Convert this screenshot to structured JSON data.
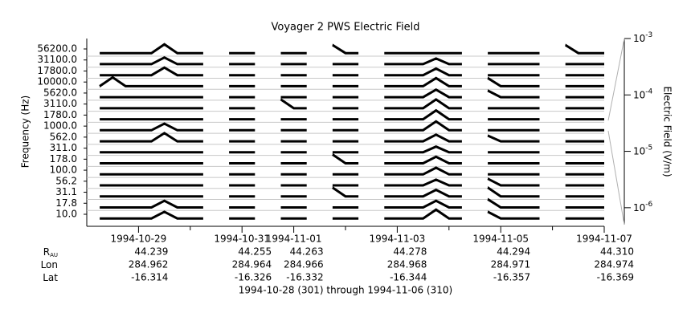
{
  "chart_data": {
    "type": "strip",
    "title": "Voyager 2 PWS Electric Field",
    "subtitle": "1994-10-28 (301) through 1994-11-06 (310)",
    "ylabel": "Frequency (Hz)",
    "y2label": "Electric Field (V/m)",
    "color": "#000000",
    "y2log": true,
    "y2lim": [
      5e-07,
      0.001
    ],
    "y2ticks": [
      {
        "value": 1e-06,
        "label": "10",
        "exponent": "-6"
      },
      {
        "value": 1e-05,
        "label": "10",
        "exponent": "-5"
      },
      {
        "value": 0.0001,
        "label": "10",
        "exponent": "-4"
      },
      {
        "value": 0.001,
        "label": "10",
        "exponent": "-3"
      }
    ],
    "yticks": [
      {
        "value": 10,
        "label": "10.0"
      },
      {
        "value": 17.8,
        "label": "17.8"
      },
      {
        "value": 31.1,
        "label": "31.1"
      },
      {
        "value": 56.2,
        "label": "56.2"
      },
      {
        "value": 100,
        "label": "100.0"
      },
      {
        "value": 178,
        "label": "178.0"
      },
      {
        "value": 311,
        "label": "311.0"
      },
      {
        "value": 562,
        "label": "562.0"
      },
      {
        "value": 1000,
        "label": "1000.0"
      },
      {
        "value": 1780,
        "label": "1780.0"
      },
      {
        "value": 3110,
        "label": "3110.0"
      },
      {
        "value": 5620,
        "label": "5620.0"
      },
      {
        "value": 10000,
        "label": "10000.0"
      },
      {
        "value": 17800,
        "label": "17800.0"
      },
      {
        "value": 31100,
        "label": "31100.0"
      },
      {
        "value": 56200,
        "label": "56200.0"
      }
    ],
    "xlim": [
      "1994-10-28",
      "1994-11-07"
    ],
    "xticks": [
      "1994-10-29",
      "1994-10-31",
      "1994-11-01",
      "1994-11-03",
      "1994-11-05",
      "1994-11-07"
    ],
    "xminorticks": [
      "1994-10-30",
      "1994-11-02",
      "1994-11-04",
      "1994-11-06"
    ],
    "x": [
      "1994-10-28T00:00",
      "1994-10-28T06:00",
      "1994-10-28T12:00",
      "1994-10-28T18:00",
      "1994-10-29T00:00",
      "1994-10-29T06:00",
      "1994-10-29T12:00",
      "1994-10-29T18:00",
      "1994-10-30T00:00",
      "1994-10-30T06:00",
      "1994-10-30T12:00",
      "1994-10-30T18:00",
      "1994-10-31T00:00",
      "1994-10-31T06:00",
      "1994-10-31T12:00",
      "1994-10-31T18:00",
      "1994-11-01T00:00",
      "1994-11-01T06:00",
      "1994-11-01T12:00",
      "1994-11-01T18:00",
      "1994-11-02T00:00",
      "1994-11-02T06:00",
      "1994-11-02T12:00",
      "1994-11-02T18:00",
      "1994-11-03T00:00",
      "1994-11-03T06:00",
      "1994-11-03T12:00",
      "1994-11-03T18:00",
      "1994-11-04T00:00",
      "1994-11-04T06:00",
      "1994-11-04T12:00",
      "1994-11-04T18:00",
      "1994-11-05T00:00",
      "1994-11-05T06:00",
      "1994-11-05T12:00",
      "1994-11-05T18:00",
      "1994-11-06T00:00",
      "1994-11-06T06:00",
      "1994-11-06T12:00",
      "1994-11-06T18:00",
      "1994-11-07T00:00"
    ],
    "series": [
      {
        "values": [
          null,
          8e-07,
          8e-07,
          8e-07,
          8e-07,
          8e-07,
          0.0001,
          8e-07,
          8e-07,
          8e-07,
          null,
          8e-07,
          8e-07,
          8e-07,
          null,
          8e-07,
          8e-07,
          8e-07,
          null,
          8e-07,
          8e-07,
          8e-07,
          null,
          8e-07,
          8e-07,
          8e-07,
          8e-07,
          0.0005,
          8e-07,
          8e-07,
          null,
          0.0001,
          8e-07,
          8e-07,
          8e-07,
          8e-07,
          null,
          8e-07,
          8e-07,
          8e-07,
          8e-07
        ]
      },
      {
        "values": [
          null,
          8e-07,
          8e-07,
          8e-07,
          8e-07,
          8e-07,
          0.0001,
          8e-07,
          8e-07,
          8e-07,
          null,
          8e-07,
          8e-07,
          8e-07,
          null,
          8e-07,
          8e-07,
          8e-07,
          null,
          8e-07,
          8e-07,
          8e-07,
          null,
          8e-07,
          8e-07,
          8e-07,
          8e-07,
          0.0001,
          8e-07,
          8e-07,
          null,
          0.0003,
          8e-07,
          8e-07,
          8e-07,
          8e-07,
          null,
          8e-07,
          8e-07,
          8e-07,
          8e-07
        ]
      },
      {
        "values": [
          null,
          8e-07,
          8e-07,
          8e-07,
          8e-07,
          8e-07,
          8e-07,
          8e-07,
          8e-07,
          8e-07,
          null,
          8e-07,
          8e-07,
          8e-07,
          null,
          8e-07,
          8e-07,
          8e-07,
          null,
          0.0005,
          8e-07,
          8e-07,
          null,
          8e-07,
          8e-07,
          8e-07,
          8e-07,
          0.0001,
          8e-07,
          8e-07,
          null,
          0.0005,
          8e-07,
          8e-07,
          8e-07,
          8e-07,
          null,
          8e-07,
          8e-07,
          8e-07,
          8e-07
        ]
      },
      {
        "values": [
          null,
          8e-07,
          8e-07,
          8e-07,
          8e-07,
          8e-07,
          8e-07,
          8e-07,
          8e-07,
          8e-07,
          null,
          8e-07,
          8e-07,
          8e-07,
          null,
          8e-07,
          8e-07,
          8e-07,
          null,
          8e-07,
          8e-07,
          8e-07,
          null,
          8e-07,
          8e-07,
          8e-07,
          8e-07,
          5e-05,
          8e-07,
          8e-07,
          null,
          0.0001,
          8e-07,
          8e-07,
          8e-07,
          8e-07,
          null,
          8e-07,
          8e-07,
          8e-07,
          8e-07
        ]
      },
      {
        "values": [
          null,
          8e-07,
          8e-07,
          8e-07,
          8e-07,
          8e-07,
          8e-07,
          8e-07,
          8e-07,
          8e-07,
          null,
          8e-07,
          8e-07,
          8e-07,
          null,
          8e-07,
          8e-07,
          8e-07,
          null,
          8e-07,
          8e-07,
          8e-07,
          null,
          8e-07,
          8e-07,
          8e-07,
          8e-07,
          0.0001,
          8e-07,
          8e-07,
          null,
          8e-07,
          8e-07,
          8e-07,
          8e-07,
          8e-07,
          null,
          8e-07,
          8e-07,
          8e-07,
          8e-07
        ]
      },
      {
        "values": [
          null,
          8e-07,
          8e-07,
          8e-07,
          8e-07,
          8e-07,
          8e-07,
          8e-07,
          8e-07,
          8e-07,
          null,
          8e-07,
          8e-07,
          8e-07,
          null,
          8e-07,
          8e-07,
          8e-07,
          null,
          0.0005,
          8e-07,
          8e-07,
          null,
          8e-07,
          8e-07,
          8e-07,
          8e-07,
          0.0001,
          8e-07,
          8e-07,
          null,
          8e-07,
          8e-07,
          8e-07,
          8e-07,
          8e-07,
          null,
          8e-07,
          8e-07,
          8e-07,
          8e-07
        ]
      },
      {
        "values": [
          null,
          8e-07,
          8e-07,
          8e-07,
          8e-07,
          8e-07,
          8e-07,
          8e-07,
          8e-07,
          8e-07,
          null,
          8e-07,
          8e-07,
          8e-07,
          null,
          8e-07,
          8e-07,
          8e-07,
          null,
          8e-07,
          8e-07,
          8e-07,
          null,
          8e-07,
          8e-07,
          8e-07,
          8e-07,
          5e-05,
          8e-07,
          8e-07,
          null,
          8e-07,
          8e-07,
          8e-07,
          8e-07,
          8e-07,
          null,
          8e-07,
          8e-07,
          8e-07,
          8e-07
        ]
      },
      {
        "values": [
          null,
          8e-07,
          8e-07,
          8e-07,
          8e-07,
          8e-07,
          0.0003,
          8e-07,
          8e-07,
          8e-07,
          null,
          8e-07,
          8e-07,
          8e-07,
          null,
          8e-07,
          8e-07,
          8e-07,
          null,
          8e-07,
          8e-07,
          8e-07,
          null,
          8e-07,
          8e-07,
          8e-07,
          8e-07,
          0.0001,
          8e-07,
          8e-07,
          null,
          5e-05,
          8e-07,
          8e-07,
          8e-07,
          8e-07,
          null,
          8e-07,
          8e-07,
          8e-07,
          8e-07
        ]
      },
      {
        "values": [
          null,
          8e-07,
          8e-07,
          8e-07,
          8e-07,
          8e-07,
          0.0001,
          8e-07,
          8e-07,
          8e-07,
          null,
          8e-07,
          8e-07,
          8e-07,
          null,
          8e-07,
          8e-07,
          8e-07,
          null,
          8e-07,
          8e-07,
          8e-07,
          null,
          8e-07,
          8e-07,
          8e-07,
          8e-07,
          0.0005,
          8e-07,
          8e-07,
          null,
          8e-07,
          8e-07,
          8e-07,
          8e-07,
          8e-07,
          null,
          8e-07,
          8e-07,
          8e-07,
          8e-07
        ]
      },
      {
        "values": [
          null,
          8e-07,
          8e-07,
          8e-07,
          8e-07,
          8e-07,
          8e-07,
          8e-07,
          8e-07,
          8e-07,
          null,
          8e-07,
          8e-07,
          8e-07,
          null,
          8e-07,
          8e-07,
          8e-07,
          null,
          8e-07,
          8e-07,
          8e-07,
          null,
          8e-07,
          8e-07,
          8e-07,
          8e-07,
          0.0005,
          8e-07,
          8e-07,
          null,
          8e-07,
          8e-07,
          8e-07,
          8e-07,
          8e-07,
          null,
          8e-07,
          8e-07,
          8e-07,
          8e-07
        ]
      },
      {
        "values": [
          null,
          8e-07,
          8e-07,
          8e-07,
          8e-07,
          8e-07,
          8e-07,
          8e-07,
          8e-07,
          8e-07,
          null,
          8e-07,
          8e-07,
          8e-07,
          null,
          0.0005,
          8e-07,
          8e-07,
          null,
          8e-07,
          8e-07,
          8e-07,
          null,
          8e-07,
          8e-07,
          8e-07,
          8e-07,
          0.0005,
          8e-07,
          8e-07,
          null,
          8e-07,
          8e-07,
          8e-07,
          8e-07,
          8e-07,
          null,
          8e-07,
          8e-07,
          8e-07,
          8e-07
        ]
      },
      {
        "values": [
          null,
          8e-07,
          8e-07,
          8e-07,
          8e-07,
          8e-07,
          8e-07,
          8e-07,
          8e-07,
          8e-07,
          null,
          8e-07,
          8e-07,
          8e-07,
          null,
          8e-07,
          8e-07,
          8e-07,
          null,
          8e-07,
          8e-07,
          8e-07,
          null,
          8e-07,
          8e-07,
          8e-07,
          8e-07,
          0.0002,
          8e-07,
          8e-07,
          null,
          0.0001,
          8e-07,
          8e-07,
          8e-07,
          8e-07,
          null,
          8e-07,
          8e-07,
          8e-07,
          8e-07
        ]
      },
      {
        "values": [
          null,
          8e-07,
          0.0005,
          8e-07,
          8e-07,
          8e-07,
          8e-07,
          8e-07,
          8e-07,
          8e-07,
          null,
          8e-07,
          8e-07,
          8e-07,
          null,
          8e-07,
          8e-07,
          8e-07,
          null,
          8e-07,
          8e-07,
          8e-07,
          null,
          8e-07,
          8e-07,
          8e-07,
          8e-07,
          0.0003,
          8e-07,
          8e-07,
          null,
          0.0003,
          8e-07,
          8e-07,
          8e-07,
          8e-07,
          null,
          8e-07,
          8e-07,
          8e-07,
          8e-07
        ]
      },
      {
        "values": [
          null,
          8e-07,
          8e-07,
          8e-07,
          8e-07,
          8e-07,
          0.0002,
          8e-07,
          8e-07,
          8e-07,
          null,
          8e-07,
          8e-07,
          8e-07,
          null,
          8e-07,
          8e-07,
          8e-07,
          null,
          8e-07,
          8e-07,
          8e-07,
          null,
          8e-07,
          8e-07,
          8e-07,
          8e-07,
          0.0001,
          8e-07,
          8e-07,
          null,
          8e-07,
          8e-07,
          8e-07,
          8e-07,
          8e-07,
          null,
          8e-07,
          8e-07,
          8e-07,
          8e-07
        ]
      },
      {
        "values": [
          null,
          8e-07,
          8e-07,
          8e-07,
          8e-07,
          8e-07,
          0.0001,
          8e-07,
          8e-07,
          8e-07,
          null,
          8e-07,
          8e-07,
          8e-07,
          null,
          8e-07,
          8e-07,
          8e-07,
          null,
          8e-07,
          8e-07,
          8e-07,
          null,
          8e-07,
          8e-07,
          8e-07,
          8e-07,
          5e-05,
          8e-07,
          8e-07,
          null,
          8e-07,
          8e-07,
          8e-07,
          8e-07,
          8e-07,
          null,
          8e-07,
          8e-07,
          8e-07,
          8e-07
        ]
      },
      {
        "values": [
          null,
          8e-07,
          8e-07,
          8e-07,
          8e-07,
          8e-07,
          0.0005,
          8e-07,
          8e-07,
          8e-07,
          null,
          8e-07,
          8e-07,
          8e-07,
          null,
          8e-07,
          8e-07,
          8e-07,
          null,
          0.0003,
          8e-07,
          8e-07,
          null,
          8e-07,
          8e-07,
          8e-07,
          8e-07,
          8e-07,
          8e-07,
          8e-07,
          null,
          8e-07,
          8e-07,
          8e-07,
          8e-07,
          8e-07,
          null,
          0.0003,
          8e-07,
          8e-07,
          8e-07
        ]
      }
    ],
    "ephemeris": [
      {
        "label": "R",
        "subscript": "AU",
        "values": [
          "44.239",
          "44.255",
          "44.263",
          "44.278",
          "44.294",
          "44.310"
        ]
      },
      {
        "label": "Lon",
        "values": [
          "284.962",
          "284.964",
          "284.966",
          "284.968",
          "284.971",
          "284.974"
        ]
      },
      {
        "label": "Lat",
        "values": [
          "-16.314",
          "-16.326",
          "-16.332",
          "-16.344",
          "-16.357",
          "-16.369"
        ]
      }
    ]
  }
}
